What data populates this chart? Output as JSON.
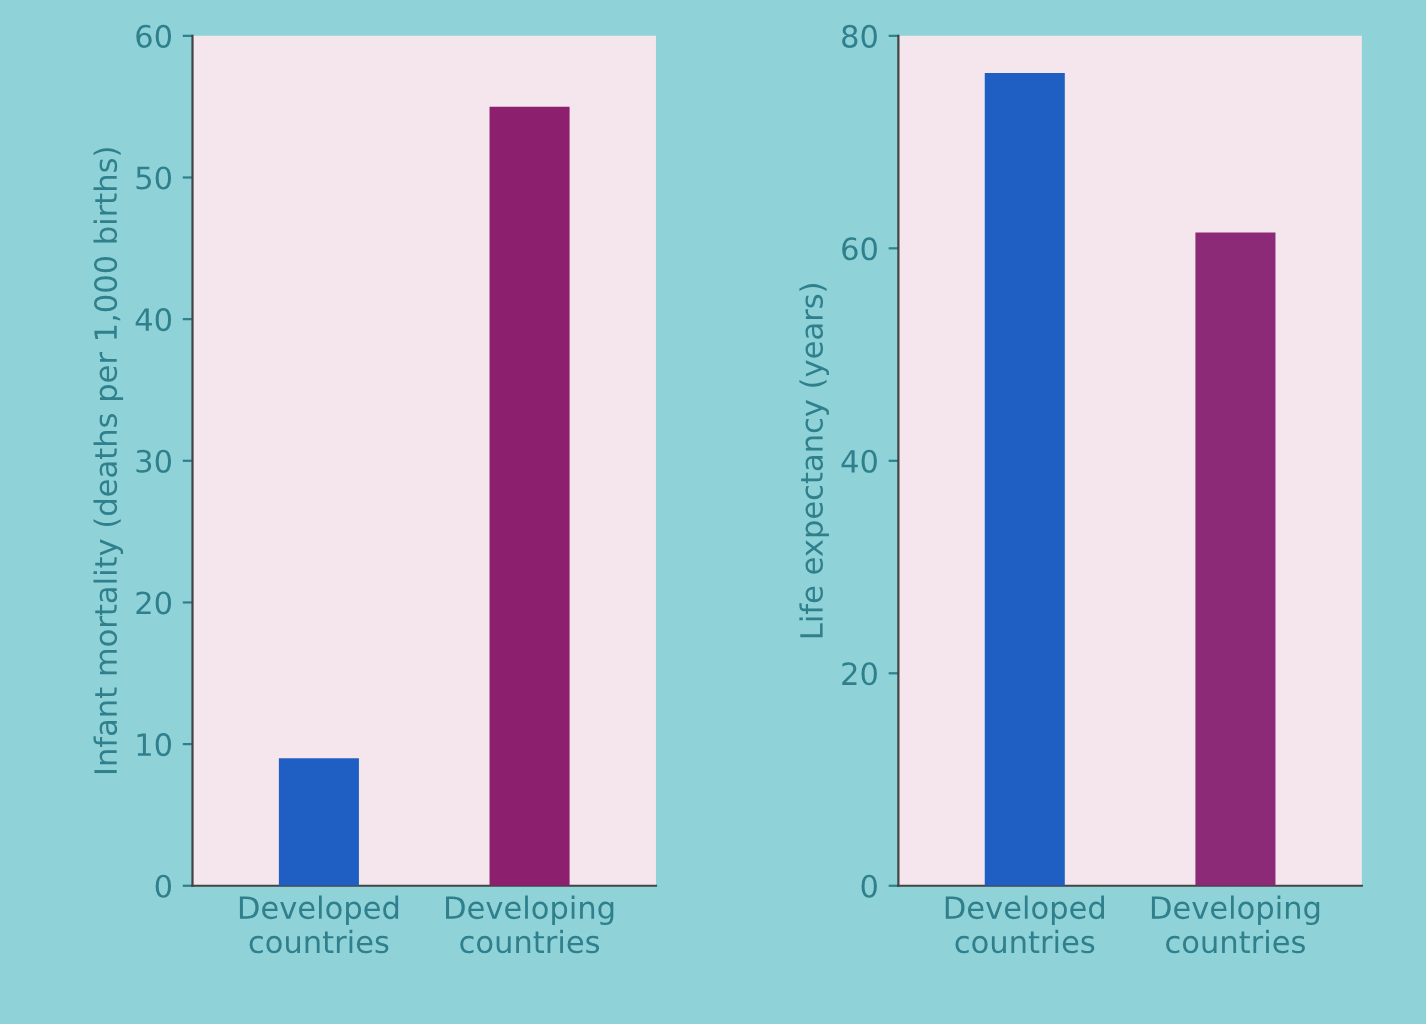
{
  "chart_data": [
    {
      "type": "bar",
      "ylabel": "Infant mortality (deaths per 1,000 births)",
      "categories": [
        "Developed\ncountries",
        "Developing\ncountries"
      ],
      "values": [
        9,
        55
      ],
      "colors": [
        "#1f5fc4",
        "#8c1f6e"
      ],
      "ylim": [
        0,
        60
      ],
      "yticks": [
        0,
        10,
        20,
        30,
        40,
        50,
        60
      ],
      "grid": false
    },
    {
      "type": "bar",
      "ylabel": "Life expectancy (years)",
      "categories": [
        "Developed\ncountries",
        "Developing\ncountries"
      ],
      "values": [
        76.5,
        61.5
      ],
      "colors": [
        "#1f5fc4",
        "#8c2a78"
      ],
      "ylim": [
        0,
        80
      ],
      "yticks": [
        0,
        20,
        40,
        60,
        80
      ],
      "grid": false
    }
  ]
}
